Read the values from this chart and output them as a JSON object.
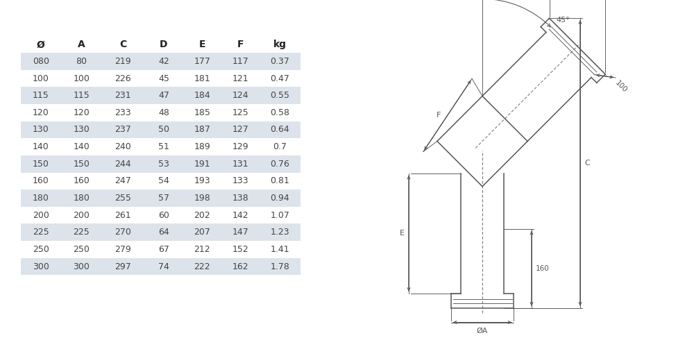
{
  "table_headers": [
    "Ø",
    "A",
    "C",
    "D",
    "E",
    "F",
    "kg"
  ],
  "table_rows": [
    [
      "080",
      "80",
      "219",
      "42",
      "177",
      "117",
      "0.37"
    ],
    [
      "100",
      "100",
      "226",
      "45",
      "181",
      "121",
      "0.47"
    ],
    [
      "115",
      "115",
      "231",
      "47",
      "184",
      "124",
      "0.55"
    ],
    [
      "120",
      "120",
      "233",
      "48",
      "185",
      "125",
      "0.58"
    ],
    [
      "130",
      "130",
      "237",
      "50",
      "187",
      "127",
      "0.64"
    ],
    [
      "140",
      "140",
      "240",
      "51",
      "189",
      "129",
      "0.7"
    ],
    [
      "150",
      "150",
      "244",
      "53",
      "191",
      "131",
      "0.76"
    ],
    [
      "160",
      "160",
      "247",
      "54",
      "193",
      "133",
      "0.81"
    ],
    [
      "180",
      "180",
      "255",
      "57",
      "198",
      "138",
      "0.94"
    ],
    [
      "200",
      "200",
      "261",
      "60",
      "202",
      "142",
      "1.07"
    ],
    [
      "225",
      "225",
      "270",
      "64",
      "207",
      "147",
      "1.23"
    ],
    [
      "250",
      "250",
      "279",
      "67",
      "212",
      "152",
      "1.41"
    ],
    [
      "300",
      "300",
      "297",
      "74",
      "222",
      "162",
      "1.78"
    ]
  ],
  "row_bg_shaded": "#dde3ea",
  "row_bg_white": "#ffffff",
  "text_color": "#444444",
  "header_text_color": "#222222",
  "bg_color": "#ffffff",
  "line_color": "#555555",
  "dim_line_color": "#555555"
}
